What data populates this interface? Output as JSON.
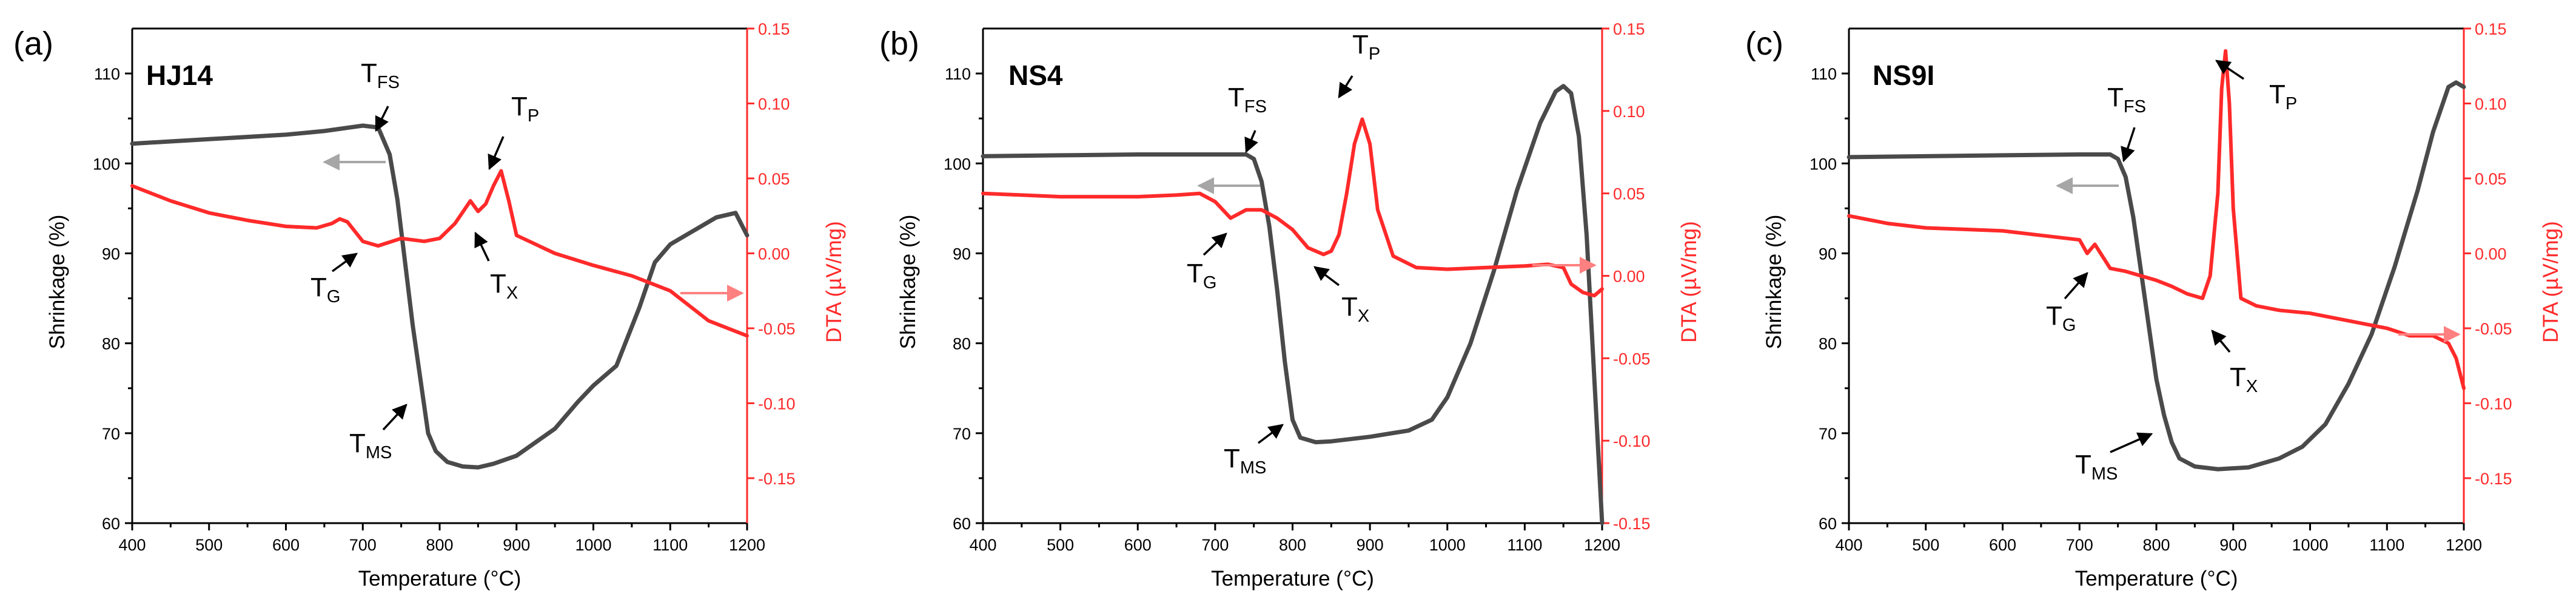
{
  "figure": {
    "y_left_title": "Shrinkage (%)",
    "y_right_title": "DTA (µV/mg)",
    "x_title": "Temperature (°C)"
  },
  "colors": {
    "shrinkage": "#4a4a4a",
    "dta": "#ff2a2a",
    "axis": "#000000",
    "shrinkage_arrow": "#a6a6a6",
    "dta_arrow": "#ff8080"
  },
  "chart_data": [
    {
      "type": "line",
      "panel": "(a)",
      "sample": "HJ14",
      "xlabel": "Temperature (°C)",
      "ylabel": "Shrinkage (%)",
      "y2label": "DTA (µV/mg)",
      "xlim": [
        400,
        1200
      ],
      "ylim": [
        60,
        115
      ],
      "y2lim": [
        -0.18,
        0.15
      ],
      "xticks": [
        "400",
        "500",
        "600",
        "700",
        "800",
        "900",
        "1000",
        "1100",
        "1200"
      ],
      "yticks": [
        "60",
        "70",
        "80",
        "90",
        "100",
        "110"
      ],
      "y2ticks": [
        "-0.15",
        "-0.10",
        "-0.05",
        "0.00",
        "0.05",
        "0.10",
        "0.15"
      ],
      "series": [
        {
          "name": "Shrinkage",
          "axis": "left",
          "x": [
            400,
            500,
            600,
            650,
            700,
            720,
            735,
            745,
            755,
            765,
            775,
            785,
            795,
            810,
            830,
            850,
            870,
            900,
            950,
            980,
            1000,
            1030,
            1060,
            1080,
            1100,
            1130,
            1160,
            1185,
            1200
          ],
          "y": [
            102.2,
            102.7,
            103.2,
            103.6,
            104.2,
            104.0,
            101.0,
            96,
            89,
            82,
            76,
            70,
            68,
            66.8,
            66.3,
            66.2,
            66.6,
            67.5,
            70.5,
            73.5,
            75.3,
            77.5,
            84,
            89,
            91,
            92.5,
            94,
            94.5,
            92
          ]
        },
        {
          "name": "DTA",
          "axis": "right",
          "x": [
            400,
            450,
            500,
            550,
            600,
            640,
            660,
            670,
            680,
            700,
            720,
            750,
            780,
            800,
            820,
            840,
            850,
            860,
            870,
            880,
            890,
            900,
            950,
            1000,
            1050,
            1100,
            1150,
            1200
          ],
          "y": [
            0.045,
            0.035,
            0.027,
            0.022,
            0.018,
            0.017,
            0.02,
            0.023,
            0.021,
            0.008,
            0.005,
            0.01,
            0.008,
            0.01,
            0.02,
            0.035,
            0.028,
            0.033,
            0.045,
            0.055,
            0.035,
            0.012,
            0.0,
            -0.008,
            -0.015,
            -0.025,
            -0.045,
            -0.055
          ]
        }
      ],
      "annotations": [
        {
          "main": "T",
          "sub": "FS"
        },
        {
          "main": "T",
          "sub": "P"
        },
        {
          "main": "T",
          "sub": "G"
        },
        {
          "main": "T",
          "sub": "X"
        },
        {
          "main": "T",
          "sub": "MS"
        }
      ]
    },
    {
      "type": "line",
      "panel": "(b)",
      "sample": "NS4",
      "xlabel": "Temperature (°C)",
      "ylabel": "Shrinkage (%)",
      "y2label": "DTA (µV/mg)",
      "xlim": [
        400,
        1200
      ],
      "ylim": [
        60,
        115
      ],
      "y2lim": [
        -0.15,
        0.15
      ],
      "xticks": [
        "400",
        "500",
        "600",
        "700",
        "800",
        "900",
        "1000",
        "1100",
        "1200"
      ],
      "yticks": [
        "60",
        "70",
        "80",
        "90",
        "100",
        "110"
      ],
      "y2ticks": [
        "-0.15",
        "-0.10",
        "-0.05",
        "0.00",
        "0.05",
        "0.10",
        "0.15"
      ],
      "series": [
        {
          "name": "Shrinkage",
          "axis": "left",
          "x": [
            400,
            500,
            600,
            700,
            740,
            750,
            760,
            770,
            780,
            790,
            800,
            810,
            830,
            850,
            900,
            950,
            980,
            1000,
            1030,
            1060,
            1090,
            1120,
            1140,
            1150,
            1160,
            1170,
            1180,
            1190,
            1200
          ],
          "y": [
            100.8,
            100.9,
            101.0,
            101.0,
            101.0,
            100.5,
            98,
            93,
            86,
            78,
            71.5,
            69.5,
            69,
            69.1,
            69.6,
            70.3,
            71.5,
            74,
            80,
            88,
            97,
            104.5,
            108,
            108.6,
            107.8,
            103,
            92,
            76,
            60
          ]
        },
        {
          "name": "DTA",
          "axis": "right",
          "x": [
            400,
            450,
            500,
            550,
            600,
            650,
            680,
            700,
            720,
            740,
            760,
            780,
            800,
            820,
            840,
            850,
            860,
            870,
            880,
            890,
            900,
            910,
            930,
            960,
            1000,
            1050,
            1100,
            1130,
            1150,
            1160,
            1175,
            1190,
            1200
          ],
          "y": [
            0.05,
            0.049,
            0.048,
            0.048,
            0.048,
            0.049,
            0.05,
            0.045,
            0.035,
            0.04,
            0.04,
            0.035,
            0.028,
            0.017,
            0.013,
            0.015,
            0.025,
            0.05,
            0.08,
            0.095,
            0.08,
            0.04,
            0.012,
            0.005,
            0.004,
            0.005,
            0.006,
            0.007,
            0.005,
            -0.005,
            -0.01,
            -0.012,
            -0.008
          ]
        }
      ],
      "annotations": [
        {
          "main": "T",
          "sub": "FS"
        },
        {
          "main": "T",
          "sub": "P"
        },
        {
          "main": "T",
          "sub": "G"
        },
        {
          "main": "T",
          "sub": "X"
        },
        {
          "main": "T",
          "sub": "MS"
        }
      ]
    },
    {
      "type": "line",
      "panel": "(c)",
      "sample": "NS9I",
      "xlabel": "Temperature (°C)",
      "ylabel": "Shrinkage (%)",
      "y2label": "DTA (µV/mg)",
      "xlim": [
        400,
        1200
      ],
      "ylim": [
        60,
        115
      ],
      "y2lim": [
        -0.18,
        0.15
      ],
      "xticks": [
        "400",
        "500",
        "600",
        "700",
        "800",
        "900",
        "1000",
        "1100",
        "1200"
      ],
      "yticks": [
        "60",
        "70",
        "80",
        "90",
        "100",
        "110"
      ],
      "y2ticks": [
        "-0.15",
        "-0.10",
        "-0.05",
        "0.00",
        "0.05",
        "0.10",
        "0.15"
      ],
      "series": [
        {
          "name": "Shrinkage",
          "axis": "left",
          "x": [
            400,
            500,
            600,
            700,
            740,
            750,
            760,
            770,
            780,
            790,
            800,
            810,
            820,
            830,
            850,
            880,
            920,
            960,
            990,
            1020,
            1050,
            1080,
            1110,
            1140,
            1160,
            1180,
            1190,
            1200
          ],
          "y": [
            100.7,
            100.8,
            100.9,
            101.0,
            101.0,
            100.5,
            98.5,
            94,
            88,
            82,
            76,
            72,
            69,
            67.2,
            66.3,
            66.0,
            66.2,
            67.2,
            68.5,
            71,
            75.5,
            81,
            88.5,
            97,
            103.5,
            108.5,
            109,
            108.5
          ]
        },
        {
          "name": "DTA",
          "axis": "right",
          "x": [
            400,
            450,
            500,
            550,
            600,
            650,
            700,
            710,
            720,
            740,
            760,
            780,
            800,
            820,
            840,
            860,
            870,
            880,
            885,
            890,
            895,
            900,
            910,
            930,
            960,
            1000,
            1050,
            1100,
            1130,
            1160,
            1180,
            1190,
            1200
          ],
          "y": [
            0.025,
            0.02,
            0.017,
            0.016,
            0.015,
            0.012,
            0.009,
            0.0,
            0.006,
            -0.01,
            -0.012,
            -0.015,
            -0.018,
            -0.022,
            -0.027,
            -0.03,
            -0.015,
            0.04,
            0.11,
            0.135,
            0.1,
            0.03,
            -0.03,
            -0.035,
            -0.038,
            -0.04,
            -0.045,
            -0.05,
            -0.055,
            -0.055,
            -0.06,
            -0.07,
            -0.09
          ]
        }
      ],
      "annotations": [
        {
          "main": "T",
          "sub": "FS"
        },
        {
          "main": "T",
          "sub": "P"
        },
        {
          "main": "T",
          "sub": "G"
        },
        {
          "main": "T",
          "sub": "X"
        },
        {
          "main": "T",
          "sub": "MS"
        }
      ]
    }
  ]
}
